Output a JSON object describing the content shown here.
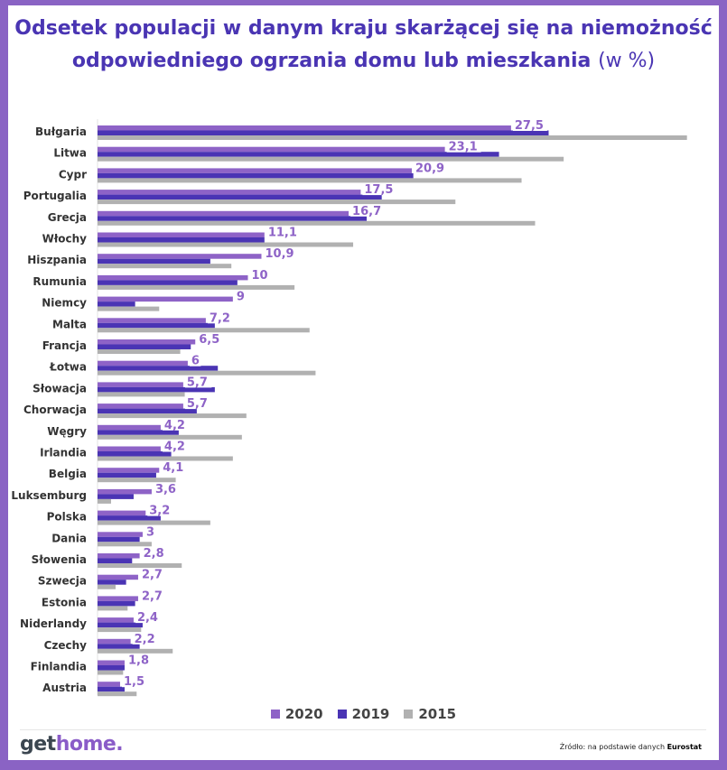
{
  "colors": {
    "2020": "#8e63c7",
    "2019": "#4a34b4",
    "2015": "#b1b1b1",
    "title": "#4a35b3",
    "frame": "#8a63c4"
  },
  "title_main": "Odsetek populacji w danym kraju skarżącej się na niemożność odpowiedniego ogrzania domu lub mieszkania",
  "title_unit": "(w %)",
  "source_prefix": "Źródło: na podstawie danych",
  "source_name": "Eurostat",
  "logo": {
    "part1": "get",
    "part2": "home."
  },
  "chart_data": {
    "type": "bar",
    "orientation": "horizontal",
    "title": "Odsetek populacji w danym kraju skarżącej się na niemożność odpowiedniego ogrzania domu lub mieszkania (w %)",
    "legend_position": "bottom",
    "grid": false,
    "xlim": [
      0,
      40
    ],
    "categories": [
      "Bułgaria",
      "Litwa",
      "Cypr",
      "Portugalia",
      "Grecja",
      "Włochy",
      "Hiszpania",
      "Rumunia",
      "Niemcy",
      "Malta",
      "Francja",
      "Łotwa",
      "Słowacja",
      "Chorwacja",
      "Węgry",
      "Irlandia",
      "Belgia",
      "Luksemburg",
      "Polska",
      "Dania",
      "Słowenia",
      "Szwecja",
      "Estonia",
      "Niderlandy",
      "Czechy",
      "Finlandia",
      "Austria"
    ],
    "series": [
      {
        "name": "2020",
        "labels": [
          "27,5",
          "23,1",
          "20,9",
          "17,5",
          "16,7",
          "11,1",
          "10,9",
          "10",
          "9",
          "7,2",
          "6,5",
          "6",
          "5,7",
          "5,7",
          "4,2",
          "4,2",
          "4,1",
          "3,6",
          "3,2",
          "3",
          "2,8",
          "2,7",
          "2,7",
          "2,4",
          "2,2",
          "1,8",
          "1,5"
        ],
        "values": [
          27.5,
          23.1,
          20.9,
          17.5,
          16.7,
          11.1,
          10.9,
          10,
          9,
          7.2,
          6.5,
          6,
          5.7,
          5.7,
          4.2,
          4.2,
          4.1,
          3.6,
          3.2,
          3,
          2.8,
          2.7,
          2.7,
          2.4,
          2.2,
          1.8,
          1.5
        ]
      },
      {
        "name": "2019",
        "values": [
          30.0,
          26.7,
          21.0,
          18.9,
          17.9,
          11.1,
          7.5,
          9.3,
          2.5,
          7.8,
          6.2,
          8.0,
          7.8,
          6.6,
          5.4,
          4.9,
          3.9,
          2.4,
          4.2,
          2.8,
          2.3,
          1.9,
          2.5,
          3.0,
          2.8,
          1.8,
          1.8
        ]
      },
      {
        "name": "2015",
        "values": [
          39.2,
          31.0,
          28.2,
          23.8,
          29.1,
          17.0,
          8.9,
          13.1,
          4.1,
          14.1,
          5.5,
          14.5,
          5.8,
          9.9,
          9.6,
          9.0,
          5.2,
          0.9,
          7.5,
          3.6,
          5.6,
          1.2,
          2.0,
          2.9,
          5.0,
          1.7,
          2.6
        ]
      }
    ]
  }
}
